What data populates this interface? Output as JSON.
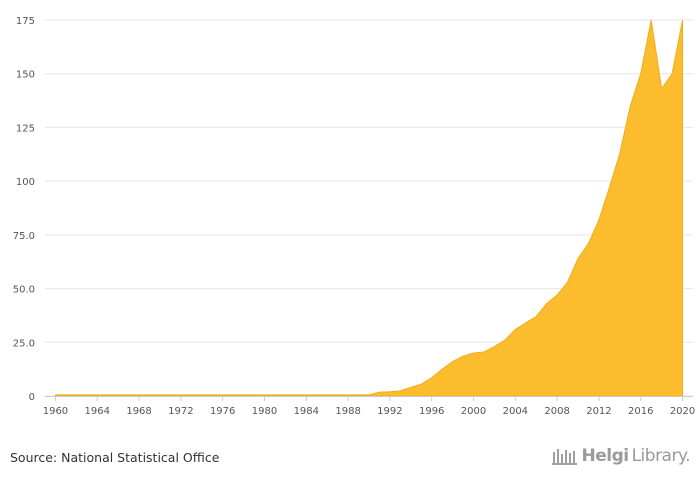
{
  "source_text": "Source: National Statistical Office",
  "brand": {
    "name": "Helgi",
    "suffix": "Library.",
    "logo_icon": "library-building-icon"
  },
  "colors": {
    "area_fill": "#FBBC2E",
    "area_stroke": "#F0AE1A",
    "grid": "#e6e6e6",
    "axis": "#cccccc",
    "text": "#555555"
  },
  "chart_data": {
    "type": "area",
    "title": "",
    "xlabel": "",
    "ylabel": "",
    "xlim": [
      1959,
      2021
    ],
    "ylim": [
      0,
      175
    ],
    "grid": "horizontal",
    "legend": "none",
    "yticks": [
      0,
      25,
      50,
      75,
      100,
      125,
      150,
      175
    ],
    "ytick_labels": [
      "0",
      "25.0",
      "50.0",
      "75.0",
      "100",
      "125",
      "150",
      "175"
    ],
    "xticks": [
      1960,
      1964,
      1968,
      1972,
      1976,
      1980,
      1984,
      1988,
      1992,
      1996,
      2000,
      2004,
      2008,
      2012,
      2016,
      2020
    ],
    "x": [
      1960,
      1961,
      1962,
      1963,
      1964,
      1965,
      1966,
      1967,
      1968,
      1969,
      1970,
      1971,
      1972,
      1973,
      1974,
      1975,
      1976,
      1977,
      1978,
      1979,
      1980,
      1981,
      1982,
      1983,
      1984,
      1985,
      1986,
      1987,
      1988,
      1989,
      1990,
      1991,
      1992,
      1993,
      1994,
      1995,
      1996,
      1997,
      1998,
      1999,
      2000,
      2001,
      2002,
      2003,
      2004,
      2005,
      2006,
      2007,
      2008,
      2009,
      2010,
      2011,
      2012,
      2013,
      2014,
      2015,
      2016,
      2017,
      2018,
      2019,
      2020
    ],
    "values": [
      0.5,
      0.5,
      0.5,
      0.5,
      0.5,
      0.5,
      0.5,
      0.5,
      0.5,
      0.5,
      0.5,
      0.5,
      0.5,
      0.5,
      0.5,
      0.5,
      0.5,
      0.5,
      0.5,
      0.5,
      0.5,
      0.5,
      0.5,
      0.5,
      0.5,
      0.5,
      0.5,
      0.5,
      0.5,
      0.5,
      0.5,
      1.8,
      2.0,
      2.4,
      4.0,
      5.5,
      8.5,
      12.5,
      16.0,
      18.5,
      20.0,
      20.5,
      23.0,
      26.0,
      31.0,
      34.0,
      37.0,
      43.0,
      47.0,
      53.0,
      64.0,
      71.0,
      82.0,
      97.0,
      113.0,
      135.0,
      150.0,
      175.0,
      143.0,
      150.0,
      175.0
    ]
  }
}
